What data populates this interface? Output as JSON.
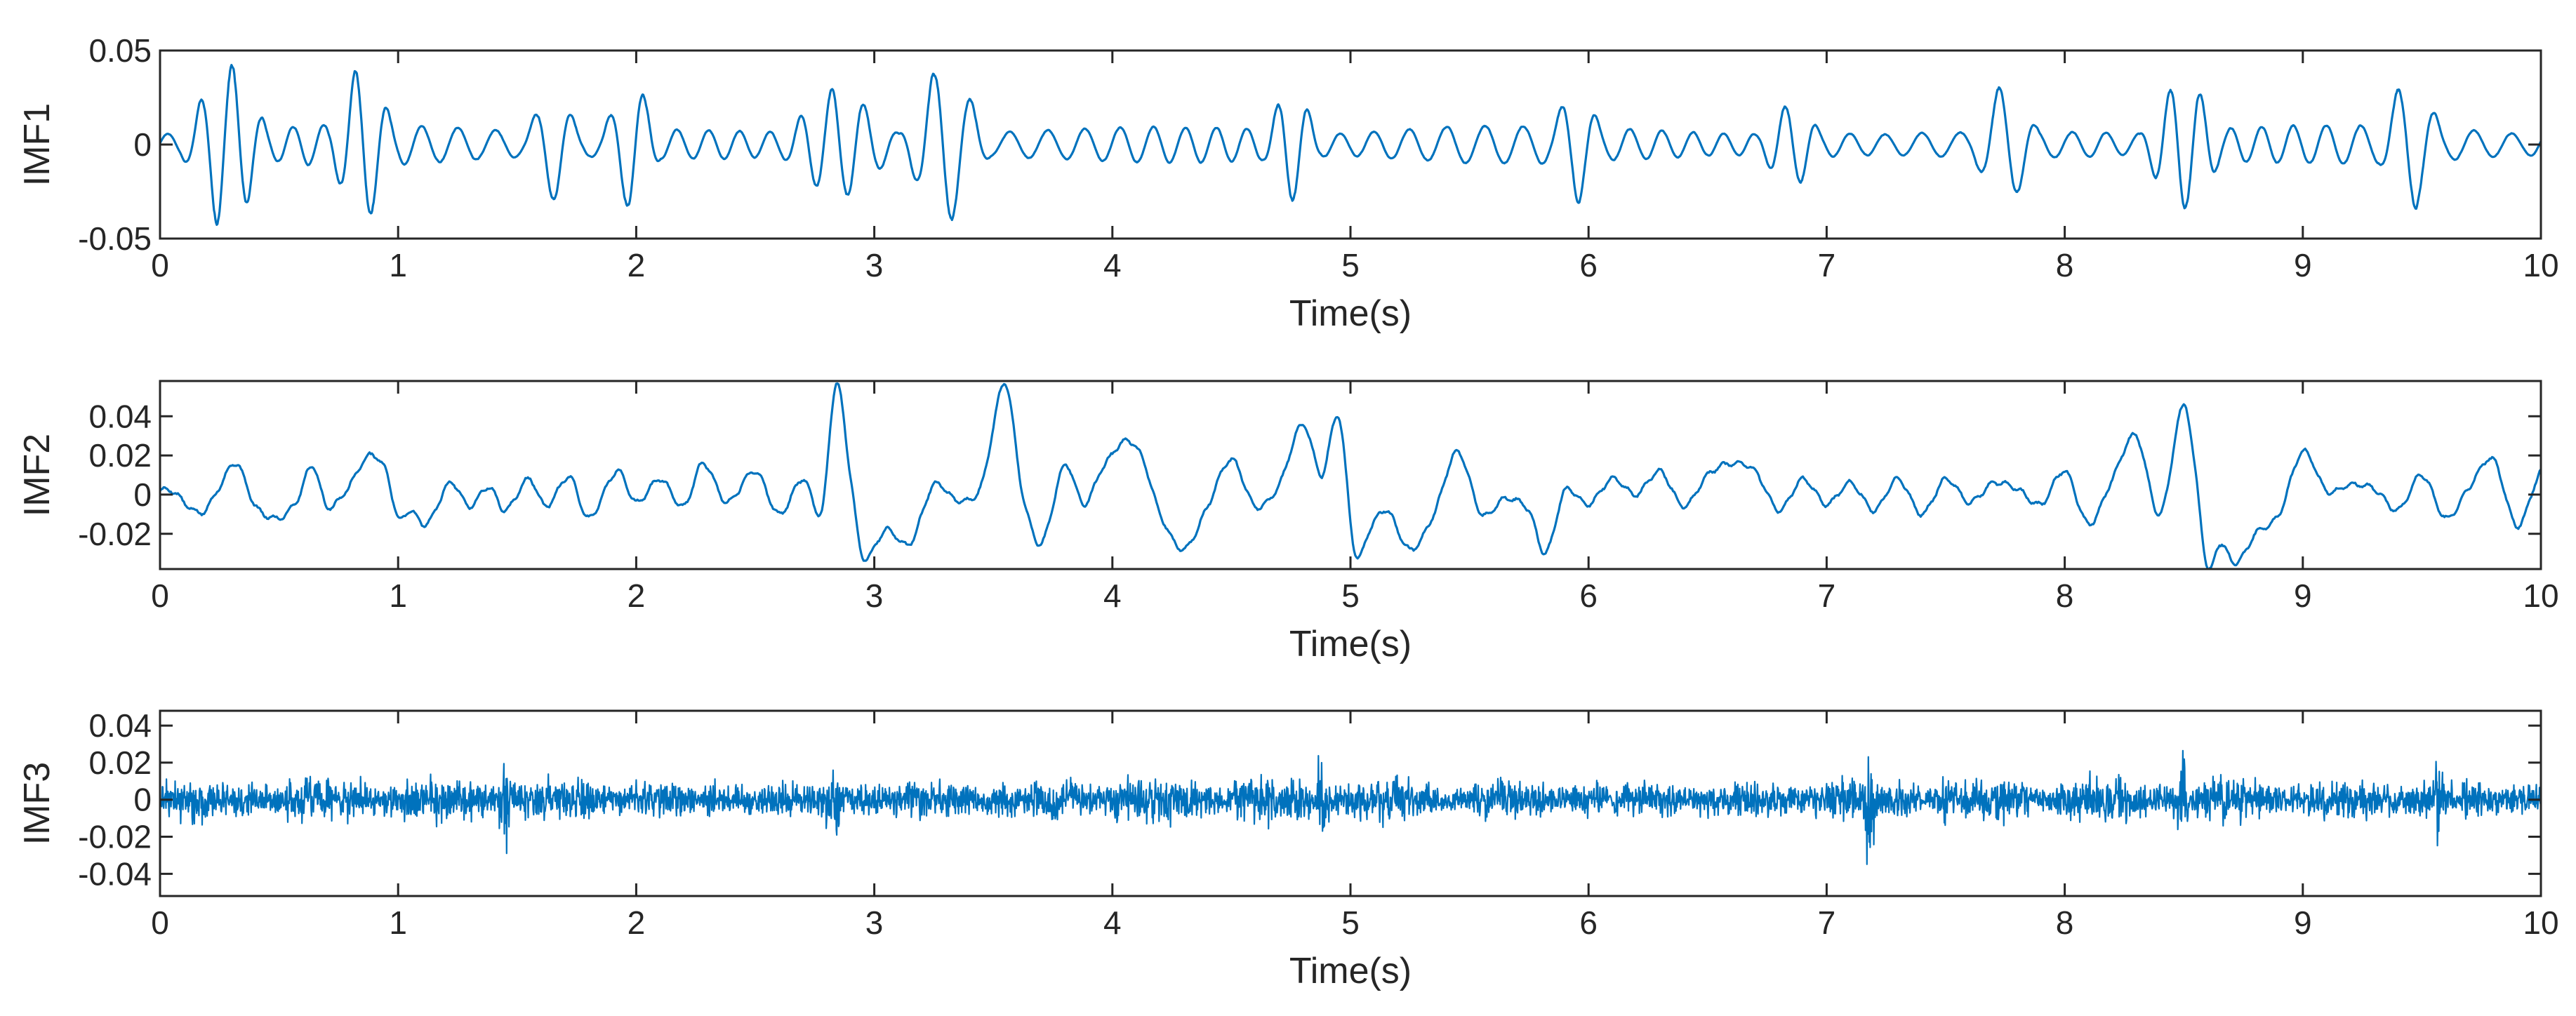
{
  "chart_data": [
    {
      "type": "line",
      "ylabel": "IMF1",
      "xlabel": "Time(s)",
      "xlim": [
        0,
        10
      ],
      "ylim": [
        -0.05,
        0.05
      ],
      "xticks": [
        0,
        1,
        2,
        3,
        4,
        5,
        6,
        7,
        8,
        9,
        10
      ],
      "xtick_labels": [
        "0",
        "1",
        "2",
        "3",
        "4",
        "5",
        "6",
        "7",
        "8",
        "9",
        "10"
      ],
      "yticks": [
        -0.05,
        0,
        0.05
      ],
      "ytick_labels": [
        "-0.05",
        "0",
        "0.05"
      ],
      "color": "#0072BD",
      "signal": {
        "kind": "oscillation",
        "carrier_hz": 7.0,
        "base_amplitude": 0.008,
        "bursts": [
          {
            "t": 0.28,
            "amp": 0.044,
            "width": 0.14
          },
          {
            "t": 0.85,
            "amp": 0.04,
            "width": 0.12
          },
          {
            "t": 1.65,
            "amp": 0.028,
            "width": 0.1
          },
          {
            "t": 1.98,
            "amp": 0.035,
            "width": 0.1
          },
          {
            "t": 2.85,
            "amp": 0.028,
            "width": 0.2
          },
          {
            "t": 3.3,
            "amp": 0.042,
            "width": 0.14
          },
          {
            "t": 4.75,
            "amp": 0.03,
            "width": 0.1
          },
          {
            "t": 5.95,
            "amp": 0.03,
            "width": 0.1
          },
          {
            "t": 6.85,
            "amp": 0.022,
            "width": 0.12
          },
          {
            "t": 7.75,
            "amp": 0.031,
            "width": 0.12
          },
          {
            "t": 8.5,
            "amp": 0.034,
            "width": 0.14
          },
          {
            "t": 9.45,
            "amp": 0.034,
            "width": 0.12
          }
        ]
      }
    },
    {
      "type": "line",
      "ylabel": "IMF2",
      "xlabel": "Time(s)",
      "xlim": [
        0,
        10
      ],
      "ylim": [
        -0.038,
        0.058
      ],
      "xticks": [
        0,
        1,
        2,
        3,
        4,
        5,
        6,
        7,
        8,
        9,
        10
      ],
      "xtick_labels": [
        "0",
        "1",
        "2",
        "3",
        "4",
        "5",
        "6",
        "7",
        "8",
        "9",
        "10"
      ],
      "yticks": [
        -0.02,
        0,
        0.02,
        0.04
      ],
      "ytick_labels": [
        "-0.02",
        "0",
        "0.02",
        "0.04"
      ],
      "color": "#0072BD",
      "signal": {
        "kind": "keypoints",
        "x": [
          0,
          0.05,
          0.12,
          0.18,
          0.25,
          0.32,
          0.4,
          0.5,
          0.58,
          0.64,
          0.7,
          0.78,
          0.88,
          0.95,
          1.0,
          1.05,
          1.12,
          1.22,
          1.3,
          1.38,
          1.45,
          1.55,
          1.62,
          1.72,
          1.8,
          1.92,
          2.0,
          2.1,
          2.2,
          2.28,
          2.38,
          2.5,
          2.6,
          2.7,
          2.78,
          2.84,
          2.9,
          2.95,
          3.05,
          3.15,
          3.25,
          3.35,
          3.45,
          3.55,
          3.62,
          3.7,
          3.8,
          3.88,
          3.95,
          4.05,
          4.12,
          4.2,
          4.3,
          4.4,
          4.5,
          4.6,
          4.7,
          4.8,
          4.88,
          4.95,
          5.02,
          5.08,
          5.15,
          5.25,
          5.35,
          5.45,
          5.55,
          5.65,
          5.75,
          5.82,
          5.9,
          6.0,
          6.1,
          6.2,
          6.3,
          6.4,
          6.5,
          6.6,
          6.7,
          6.8,
          6.9,
          7.0,
          7.1,
          7.2,
          7.3,
          7.4,
          7.5,
          7.6,
          7.7,
          7.8,
          7.9,
          8.0,
          8.1,
          8.2,
          8.3,
          8.4,
          8.5,
          8.55,
          8.6,
          8.65,
          8.72,
          8.8,
          8.9,
          9.0,
          9.1,
          9.2,
          9.3,
          9.4,
          9.5,
          9.6,
          9.7,
          9.8,
          9.9,
          10.0
        ],
        "y": [
          0.002,
          0.002,
          -0.006,
          -0.009,
          0.004,
          0.016,
          -0.006,
          -0.012,
          -0.002,
          0.015,
          -0.006,
          0.002,
          0.02,
          0.012,
          -0.012,
          -0.008,
          -0.015,
          0.006,
          -0.006,
          0.004,
          -0.008,
          0.008,
          -0.006,
          0.009,
          -0.012,
          0.012,
          -0.004,
          0.008,
          -0.006,
          0.016,
          -0.004,
          0.012,
          -0.01,
          0.008,
          -0.008,
          0.057,
          0.01,
          -0.032,
          -0.018,
          -0.025,
          0.005,
          -0.003,
          0.005,
          0.057,
          0.002,
          -0.025,
          0.015,
          -0.005,
          0.012,
          0.027,
          0.02,
          -0.01,
          -0.028,
          -0.006,
          0.018,
          -0.006,
          0.005,
          0.036,
          0.01,
          0.04,
          -0.03,
          -0.018,
          -0.008,
          -0.028,
          -0.01,
          0.022,
          -0.01,
          -0.002,
          -0.008,
          -0.03,
          0.002,
          -0.005,
          0.008,
          0.0,
          0.012,
          -0.006,
          0.01,
          0.016,
          0.012,
          -0.008,
          0.008,
          -0.005,
          0.006,
          -0.008,
          0.008,
          -0.01,
          0.008,
          -0.004,
          0.006,
          0.003,
          -0.005,
          0.012,
          -0.015,
          0.008,
          0.03,
          -0.01,
          0.046,
          0.01,
          -0.038,
          -0.025,
          -0.035,
          -0.02,
          -0.01,
          0.022,
          0.002,
          0.005,
          0.003,
          -0.008,
          0.01,
          -0.012,
          0.004,
          0.018,
          -0.016,
          0.012
        ]
      }
    },
    {
      "type": "line",
      "ylabel": "IMF3",
      "xlabel": "Time(s)",
      "xlim": [
        0,
        10
      ],
      "ylim": [
        -0.052,
        0.048
      ],
      "xticks": [
        0,
        1,
        2,
        3,
        4,
        5,
        6,
        7,
        8,
        9,
        10
      ],
      "xtick_labels": [
        "0",
        "1",
        "2",
        "3",
        "4",
        "5",
        "6",
        "7",
        "8",
        "9",
        "10"
      ],
      "yticks": [
        -0.04,
        -0.02,
        0,
        0.02,
        0.04
      ],
      "ytick_labels": [
        "-0.04",
        "-0.02",
        "0",
        "0.02",
        "0.04"
      ],
      "color": "#0072BD",
      "signal": {
        "kind": "noise",
        "base_amplitude": 0.018,
        "spikes": [
          {
            "t": 1.45,
            "amp": 0.05,
            "width": 0.025
          },
          {
            "t": 2.82,
            "amp": 0.035,
            "width": 0.04
          },
          {
            "t": 4.88,
            "amp": 0.036,
            "width": 0.03
          },
          {
            "t": 7.18,
            "amp": 0.045,
            "width": 0.025
          },
          {
            "t": 7.5,
            "amp": 0.036,
            "width": 0.03
          },
          {
            "t": 8.5,
            "amp": 0.04,
            "width": 0.03
          },
          {
            "t": 9.57,
            "amp": 0.035,
            "width": 0.03
          }
        ]
      }
    }
  ]
}
